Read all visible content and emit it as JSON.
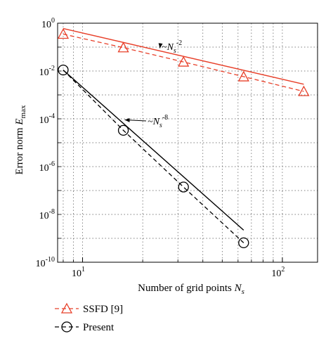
{
  "chart_data": {
    "type": "line",
    "xscale": "log",
    "yscale": "log",
    "xlim": [
      7.5,
      150
    ],
    "ylim": [
      1e-10,
      1
    ],
    "grid": true,
    "x_ticks": [
      {
        "value": 10,
        "base": "10",
        "exp": "1"
      },
      {
        "value": 100,
        "base": "10",
        "exp": "2"
      }
    ],
    "y_ticks": [
      {
        "value": 1,
        "base": "10",
        "exp": "0"
      },
      {
        "value": 0.01,
        "base": "10",
        "exp": "-2"
      },
      {
        "value": 0.0001,
        "base": "10",
        "exp": "-4"
      },
      {
        "value": 1e-06,
        "base": "10",
        "exp": "-6"
      },
      {
        "value": 1e-08,
        "base": "10",
        "exp": "-8"
      },
      {
        "value": 1e-10,
        "base": "10",
        "exp": "-10"
      }
    ],
    "xlabel": {
      "main": "Number of grid points ",
      "symbol": "N",
      "sub": "s"
    },
    "ylabel": {
      "main": "Error norm ",
      "symbol": "E",
      "sub": "max"
    },
    "series": [
      {
        "name": "SSFD [9]",
        "marker": "triangle",
        "color": "#e8402a",
        "x": [
          8,
          16,
          32,
          64,
          128
        ],
        "y": [
          0.35,
          0.095,
          0.024,
          0.0058,
          0.0014
        ],
        "reference_line": {
          "x": [
            8,
            128
          ],
          "y": [
            0.6,
            0.0028
          ]
        }
      },
      {
        "name": "Present",
        "marker": "circle",
        "color": "#000000",
        "x": [
          8,
          16,
          32,
          64
        ],
        "y": [
          0.011,
          3.3e-05,
          1.4e-07,
          6.5e-10
        ],
        "reference_line": {
          "x": [
            8,
            64
          ],
          "y": [
            0.011,
            2.2e-09
          ]
        }
      }
    ],
    "annotations": [
      {
        "text": "~N",
        "sub": "s",
        "sup": "-2",
        "arrow_to": {
          "x": 24,
          "y": 0.09
        }
      },
      {
        "text": "~N",
        "sub": "s",
        "sup": "-8",
        "arrow_to": {
          "x": 16,
          "y": 9e-05
        }
      }
    ]
  },
  "legend": [
    {
      "label": "SSFD [9]"
    },
    {
      "label": "Present"
    }
  ]
}
